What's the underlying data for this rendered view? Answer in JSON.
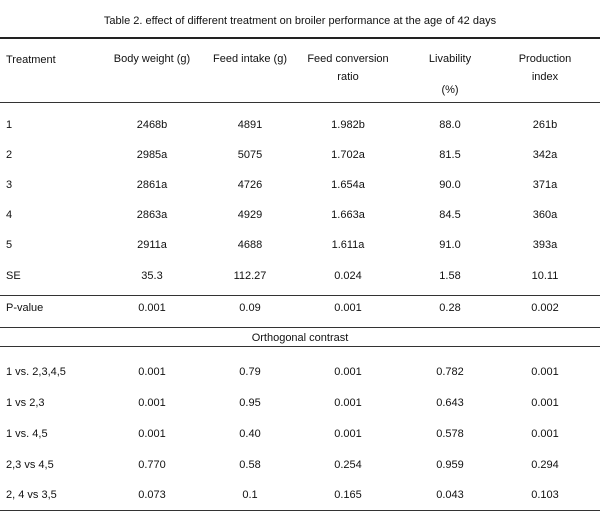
{
  "caption": "Table 2. effect of different treatment on broiler performance at the age of 42 days",
  "headers": {
    "treatment": "Treatment",
    "body_weight": "Body weight  (g)",
    "feed_intake": "Feed intake (g)",
    "fcr_line1": "Feed conversion",
    "fcr_line2": "ratio",
    "livability_line1": "Livability",
    "livability_line2": "(%)",
    "production_line1": "Production",
    "production_line2": "index"
  },
  "rows": [
    [
      "1",
      "2468b",
      "4891",
      "1.982b",
      "88.0",
      "261b"
    ],
    [
      "2",
      "2985a",
      "5075",
      "1.702a",
      "81.5",
      "342a"
    ],
    [
      "3",
      "2861a",
      "4726",
      "1.654a",
      "90.0",
      "371a"
    ],
    [
      "4",
      "2863a",
      "4929",
      "1.663a",
      "84.5",
      "360a"
    ],
    [
      "5",
      "2911a",
      "4688",
      "1.611a",
      "91.0",
      "393a"
    ],
    [
      "SE",
      "35.3",
      "112.27",
      "0.024",
      "1.58",
      "10.11"
    ]
  ],
  "pvalue_row": [
    "P-value",
    "0.001",
    "0.09",
    "0.001",
    "0.28",
    "0.002"
  ],
  "contrast_heading": "Orthogonal contrast",
  "contrast_rows": [
    [
      "1 vs. 2,3,4,5",
      "0.001",
      "0.79",
      "0.001",
      "0.782",
      "0.001"
    ],
    [
      "1 vs 2,3",
      "0.001",
      "0.95",
      "0.001",
      "0.643",
      "0.001"
    ],
    [
      "1 vs. 4,5",
      "0.001",
      "0.40",
      "0.001",
      "0.578",
      "0.001"
    ],
    [
      "2,3 vs 4,5",
      "0.770",
      "0.58",
      "0.254",
      "0.959",
      "0.294"
    ],
    [
      "2, 4 vs 3,5",
      "0.073",
      "0.1",
      "0.165",
      "0.043",
      "0.103"
    ]
  ]
}
